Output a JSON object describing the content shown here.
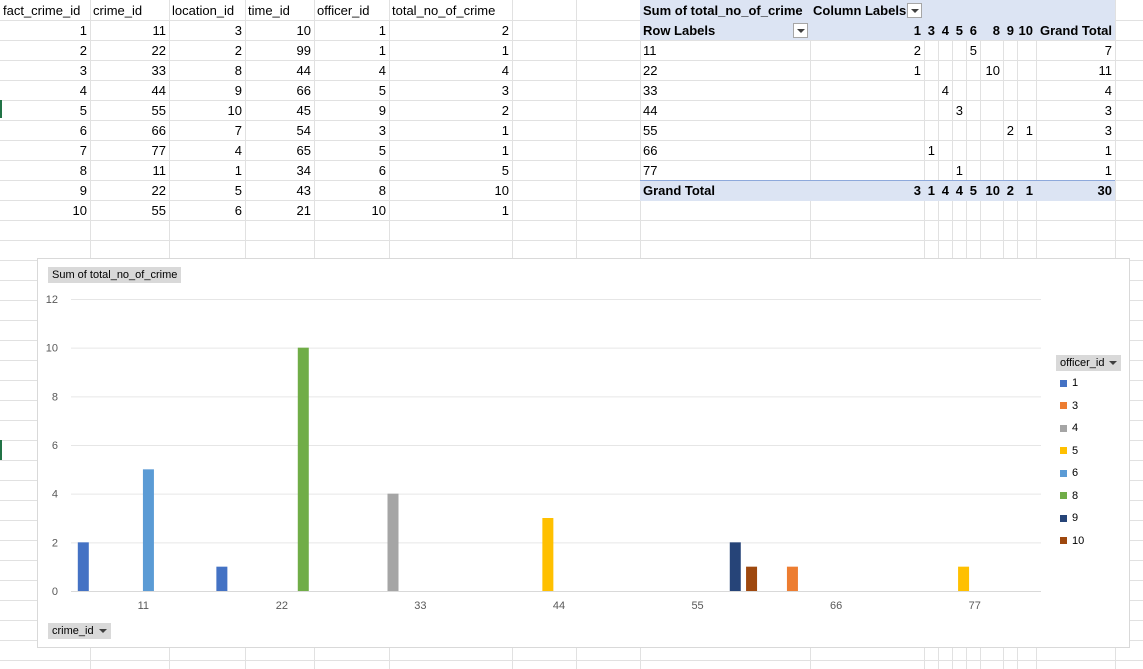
{
  "table": {
    "headers": [
      "fact_crime_id",
      "crime_id",
      "location_id",
      "time_id",
      "officer_id",
      "total_no_of_crime"
    ],
    "rows": [
      [
        1,
        11,
        3,
        10,
        1,
        2
      ],
      [
        2,
        22,
        2,
        99,
        1,
        1
      ],
      [
        3,
        33,
        8,
        44,
        4,
        4
      ],
      [
        4,
        44,
        9,
        66,
        5,
        3
      ],
      [
        5,
        55,
        10,
        45,
        9,
        2
      ],
      [
        6,
        66,
        7,
        54,
        3,
        1
      ],
      [
        7,
        77,
        4,
        65,
        5,
        1
      ],
      [
        8,
        11,
        1,
        34,
        6,
        5
      ],
      [
        9,
        22,
        5,
        43,
        8,
        10
      ],
      [
        10,
        55,
        6,
        21,
        10,
        1
      ]
    ]
  },
  "pivot": {
    "value_label": "Sum of total_no_of_crime",
    "column_labels": "Column Labels",
    "row_labels": "Row Labels",
    "grand_total_label": "Grand Total",
    "columns": [
      "1",
      "3",
      "4",
      "5",
      "6",
      "8",
      "9",
      "10"
    ],
    "rows": [
      {
        "label": "11",
        "values": [
          "2",
          "",
          "",
          "",
          "5",
          "",
          "",
          ""
        ],
        "total": "7"
      },
      {
        "label": "22",
        "values": [
          "1",
          "",
          "",
          "",
          "",
          "10",
          "",
          ""
        ],
        "total": "11"
      },
      {
        "label": "33",
        "values": [
          "",
          "",
          "4",
          "",
          "",
          "",
          "",
          ""
        ],
        "total": "4"
      },
      {
        "label": "44",
        "values": [
          "",
          "",
          "",
          "3",
          "",
          "",
          "",
          ""
        ],
        "total": "3"
      },
      {
        "label": "55",
        "values": [
          "",
          "",
          "",
          "",
          "",
          "",
          "2",
          "1"
        ],
        "total": "3"
      },
      {
        "label": "66",
        "values": [
          "",
          "1",
          "",
          "",
          "",
          "",
          "",
          ""
        ],
        "total": "1"
      },
      {
        "label": "77",
        "values": [
          "",
          "",
          "",
          "1",
          "",
          "",
          "",
          ""
        ],
        "total": "1"
      }
    ],
    "grand_totals": [
      "3",
      "1",
      "4",
      "4",
      "5",
      "10",
      "2",
      "1"
    ],
    "grand_total": "30"
  },
  "chart_data": {
    "type": "bar",
    "title": "",
    "value_field_button": "Sum of total_no_of_crime",
    "axis_field_button": "crime_id",
    "legend_field_button": "officer_id",
    "legend_position": "right",
    "ylim": [
      0,
      12
    ],
    "yticks": [
      0,
      2,
      4,
      6,
      8,
      10,
      12
    ],
    "grid": true,
    "categories": [
      "11",
      "22",
      "33",
      "44",
      "55",
      "66",
      "77"
    ],
    "series": [
      {
        "name": "1",
        "color": "#4472c4",
        "values": [
          2,
          1,
          null,
          null,
          null,
          null,
          null
        ]
      },
      {
        "name": "3",
        "color": "#ed7d31",
        "values": [
          null,
          null,
          null,
          null,
          null,
          1,
          null
        ]
      },
      {
        "name": "4",
        "color": "#a5a5a5",
        "values": [
          null,
          null,
          4,
          null,
          null,
          null,
          null
        ]
      },
      {
        "name": "5",
        "color": "#ffc000",
        "values": [
          null,
          null,
          null,
          3,
          null,
          null,
          1
        ]
      },
      {
        "name": "6",
        "color": "#5b9bd5",
        "values": [
          5,
          null,
          null,
          null,
          null,
          null,
          null
        ]
      },
      {
        "name": "8",
        "color": "#70ad47",
        "values": [
          null,
          10,
          null,
          null,
          null,
          null,
          null
        ]
      },
      {
        "name": "9",
        "color": "#264478",
        "values": [
          null,
          null,
          null,
          null,
          2,
          null,
          null
        ]
      },
      {
        "name": "10",
        "color": "#9e480e",
        "values": [
          null,
          null,
          null,
          null,
          1,
          null,
          null
        ]
      }
    ]
  }
}
